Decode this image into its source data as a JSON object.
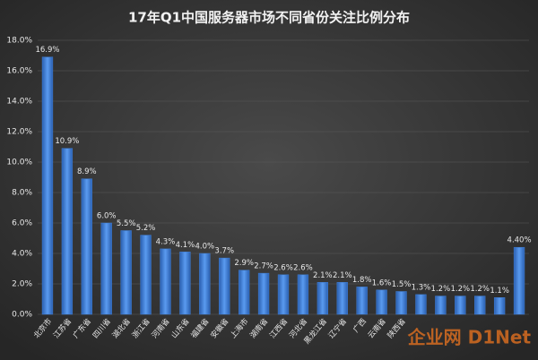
{
  "chart_data": {
    "type": "bar",
    "title": "17年Q1中国服务器市场不同省份关注比例分布",
    "categories": [
      "北京市",
      "江苏省",
      "广东省",
      "四川省",
      "湖北省",
      "浙江省",
      "河南省",
      "山东省",
      "福建省",
      "安徽省",
      "上海市",
      "湖南省",
      "江西省",
      "河北省",
      "黑龙江省",
      "辽宁省",
      "广西",
      "云南省",
      "陕西省",
      null,
      null,
      null,
      null,
      null,
      null
    ],
    "values": [
      16.9,
      10.9,
      8.9,
      6.0,
      5.5,
      5.2,
      4.3,
      4.1,
      4.0,
      3.7,
      2.9,
      2.7,
      2.6,
      2.6,
      2.1,
      2.1,
      1.8,
      1.6,
      1.5,
      1.3,
      1.2,
      1.2,
      1.2,
      1.1,
      4.4
    ],
    "value_labels": [
      "16.9%",
      "10.9%",
      "8.9%",
      "6.0%",
      "5.5%",
      "5.2%",
      "4.3%",
      "4.1%",
      "4.0%",
      "3.7%",
      "2.9%",
      "2.7%",
      "2.6%",
      "2.6%",
      "2.1%",
      "2.1%",
      "1.8%",
      "1.6%",
      "1.5%",
      "1.3%",
      "1.2%",
      "1.2%",
      "1.2%",
      "1.1%",
      "4.40%"
    ],
    "color": "#3f7fd6",
    "ylim": [
      0,
      18
    ],
    "yticks": [
      {
        "value": 0,
        "label": "0.0%"
      },
      {
        "value": 2,
        "label": "2.0%"
      },
      {
        "value": 4,
        "label": "4.0%"
      },
      {
        "value": 6,
        "label": "6.0%"
      },
      {
        "value": 8,
        "label": "8.0%"
      },
      {
        "value": 10,
        "label": "10.0%"
      },
      {
        "value": 12,
        "label": "12.0%"
      },
      {
        "value": 14,
        "label": "14.0%"
      },
      {
        "value": 16,
        "label": "16.0%"
      },
      {
        "value": 18,
        "label": "18.0%"
      }
    ],
    "grid": true,
    "watermark": "企业网 D1Net"
  }
}
